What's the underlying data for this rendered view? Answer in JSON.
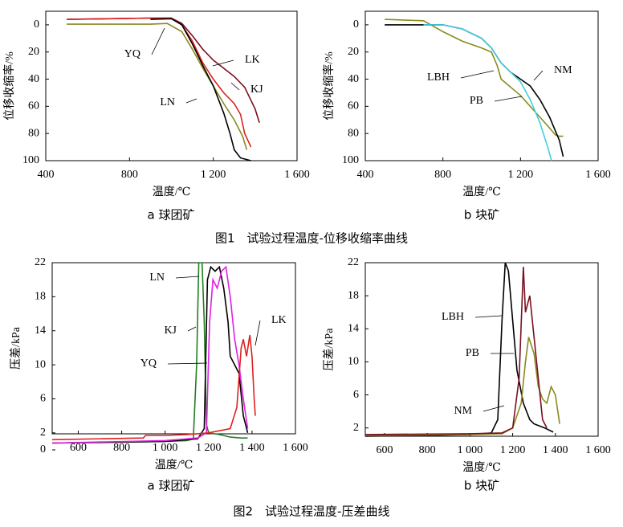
{
  "chart_data": [
    {
      "type": "line",
      "caption": "a 球团矿",
      "xlabel": "温度/℃",
      "ylabel": "位移收缩率/%",
      "xlim": [
        400,
        1600
      ],
      "xticks": [
        400,
        800,
        {
          "value": 1200,
          "label": "1 200"
        },
        {
          "value": 1600,
          "label": "1 600"
        }
      ],
      "ylim": [
        -10,
        100
      ],
      "yticks": [
        0,
        20,
        40,
        60,
        80,
        100
      ],
      "y_inverted": true,
      "series": [
        {
          "name": "YQ",
          "color": "#8a8a20",
          "x": [
            500,
            900,
            980,
            1050,
            1100,
            1150,
            1200,
            1250,
            1300,
            1340,
            1360
          ],
          "values": [
            -0.5,
            -0.5,
            -1,
            5,
            18,
            32,
            45,
            58,
            70,
            82,
            92
          ]
        },
        {
          "name": "LK",
          "color": "#7a1020",
          "x": [
            500,
            700,
            900,
            1000,
            1050,
            1100,
            1150,
            1200,
            1250,
            1300,
            1350,
            1400,
            1420
          ],
          "values": [
            -4,
            -4.5,
            -5,
            -5,
            -1,
            8,
            18,
            26,
            32,
            38,
            46,
            62,
            72
          ]
        },
        {
          "name": "KJ",
          "color": "#e02020",
          "x": [
            500,
            900,
            1000,
            1050,
            1100,
            1150,
            1200,
            1250,
            1300,
            1330,
            1350,
            1380
          ],
          "values": [
            -4,
            -5,
            -5,
            0,
            12,
            28,
            40,
            50,
            58,
            66,
            80,
            90
          ]
        },
        {
          "name": "LN",
          "color": "#000000",
          "x": [
            900,
            1000,
            1050,
            1100,
            1150,
            1200,
            1250,
            1280,
            1300,
            1330,
            1380
          ],
          "values": [
            -4,
            -4.5,
            0,
            14,
            30,
            45,
            65,
            80,
            92,
            98,
            100
          ]
        }
      ]
    },
    {
      "type": "line",
      "caption": "b 块矿",
      "xlabel": "温度/℃",
      "ylabel": "位移收缩率/%",
      "xlim": [
        400,
        1600
      ],
      "xticks": [
        400,
        800,
        {
          "value": 1200,
          "label": "1 200"
        },
        {
          "value": 1600,
          "label": "1 600"
        }
      ],
      "ylim": [
        -10,
        100
      ],
      "yticks": [
        0,
        20,
        40,
        60,
        80,
        100
      ],
      "y_inverted": true,
      "series": [
        {
          "name": "PB",
          "color": "#8a8a20",
          "x": [
            500,
            700,
            800,
            900,
            1000,
            1050,
            1080,
            1100,
            1150,
            1200,
            1250,
            1300,
            1350,
            1380,
            1400,
            1420
          ],
          "values": [
            -4,
            -3,
            5,
            12,
            17,
            20,
            30,
            40,
            46,
            52,
            60,
            68,
            76,
            81,
            82,
            82
          ]
        },
        {
          "name": "NM",
          "color": "#000000",
          "x": [
            500,
            700,
            800,
            900,
            1000,
            1050,
            1100,
            1150,
            1200,
            1250,
            1300,
            1350,
            1400,
            1420
          ],
          "values": [
            0,
            0,
            0,
            3,
            10,
            17,
            28,
            35,
            40,
            45,
            55,
            68,
            85,
            97
          ]
        },
        {
          "name": "LBH",
          "color": "#40d0e0",
          "x": [
            700,
            800,
            900,
            1000,
            1050,
            1100,
            1150,
            1200,
            1250,
            1300,
            1340,
            1360
          ],
          "values": [
            0,
            0,
            3,
            10,
            17,
            28,
            35,
            42,
            55,
            72,
            90,
            100
          ]
        }
      ]
    },
    {
      "type": "line",
      "caption": "a 球团矿",
      "xlabel": "温度/℃",
      "ylabel": "压差/kPa",
      "xlim": [
        480,
        1600
      ],
      "xticks": [
        600,
        800,
        {
          "value": 1000,
          "label": "1 000"
        },
        {
          "value": 1200,
          "label": "1 200"
        },
        {
          "value": 1400,
          "label": "1 400"
        },
        {
          "value": 1600,
          "label": "1 600"
        }
      ],
      "ylim": [
        0,
        22
      ],
      "yticks": [
        0,
        2,
        6,
        10,
        14,
        18,
        22
      ],
      "y_inverted": false,
      "series": [
        {
          "name": "YQ",
          "color": "#208020",
          "x": [
            480,
            800,
            1000,
            1100,
            1130,
            1145,
            1155,
            1170,
            1180,
            1190,
            1200,
            1250,
            1300,
            1350,
            1380
          ],
          "values": [
            0.8,
            0.9,
            1.0,
            1.1,
            1.3,
            10,
            22,
            22,
            15,
            3,
            2,
            1.8,
            1.5,
            1.4,
            1.4
          ]
        },
        {
          "name": "LN",
          "color": "#000000",
          "x": [
            480,
            1000,
            1150,
            1180,
            1195,
            1210,
            1230,
            1250,
            1270,
            1290,
            1300,
            1320,
            1340,
            1360,
            1380
          ],
          "values": [
            0.8,
            1.0,
            1.3,
            2.5,
            20,
            21.5,
            21,
            21.5,
            19,
            15,
            11,
            10,
            9,
            4,
            2
          ]
        },
        {
          "name": "KJ",
          "color": "#e020e0",
          "x": [
            480,
            1000,
            1150,
            1190,
            1205,
            1220,
            1240,
            1260,
            1280,
            1300,
            1320,
            1340,
            1360,
            1380
          ],
          "values": [
            0.8,
            1.1,
            1.4,
            2,
            15,
            20,
            19,
            21,
            21.5,
            18,
            13,
            10,
            6,
            2.5
          ]
        },
        {
          "name": "LK",
          "color": "#e02020",
          "x": [
            480,
            900,
            910,
            1000,
            1100,
            1200,
            1300,
            1330,
            1350,
            1360,
            1375,
            1390,
            1400,
            1410,
            1415
          ],
          "values": [
            1.2,
            1.4,
            1.7,
            1.7,
            1.8,
            2.0,
            2.5,
            5,
            12,
            13,
            11,
            13.5,
            11,
            6,
            4
          ]
        }
      ]
    },
    {
      "type": "line",
      "caption": "b 块矿",
      "xlabel": "温度/℃",
      "ylabel": "压差/kPa",
      "xlim": [
        510,
        1600
      ],
      "xticks": [
        600,
        800,
        {
          "value": 1000,
          "label": "1 000"
        },
        {
          "value": 1200,
          "label": "1 200"
        },
        {
          "value": 1400,
          "label": "1 400"
        },
        {
          "value": 1600,
          "label": "1 600"
        }
      ],
      "ylim": [
        1,
        22
      ],
      "yticks": [
        2,
        6,
        10,
        14,
        18,
        22
      ],
      "y_inverted": false,
      "series": [
        {
          "name": "LBH",
          "color": "#000000",
          "x": [
            510,
            800,
            1000,
            1100,
            1130,
            1150,
            1165,
            1180,
            1200,
            1220,
            1250,
            1280,
            1300,
            1350,
            1390
          ],
          "values": [
            1,
            1.1,
            1.2,
            1.4,
            3,
            15,
            22,
            21,
            15,
            9,
            5,
            3,
            2.5,
            2,
            1.5
          ]
        },
        {
          "name": "PB",
          "color": "#8a8a20",
          "x": [
            510,
            1000,
            1150,
            1200,
            1240,
            1260,
            1275,
            1300,
            1320,
            1340,
            1360,
            1380,
            1400,
            1420
          ],
          "values": [
            1.1,
            1.2,
            1.3,
            2,
            5,
            10,
            13,
            11,
            7,
            5.5,
            5,
            7,
            6,
            2.5
          ]
        },
        {
          "name": "NM",
          "color": "#7a1020",
          "x": [
            510,
            1000,
            1150,
            1200,
            1230,
            1250,
            1260,
            1280,
            1300,
            1320,
            1340,
            1360
          ],
          "values": [
            1.2,
            1.3,
            1.4,
            2,
            8,
            21.5,
            16,
            18,
            13,
            8,
            3,
            2
          ]
        }
      ]
    }
  ],
  "figure_captions": [
    "图1　试验过程温度-位移收缩率曲线",
    "图2　试验过程温度-压差曲线"
  ]
}
